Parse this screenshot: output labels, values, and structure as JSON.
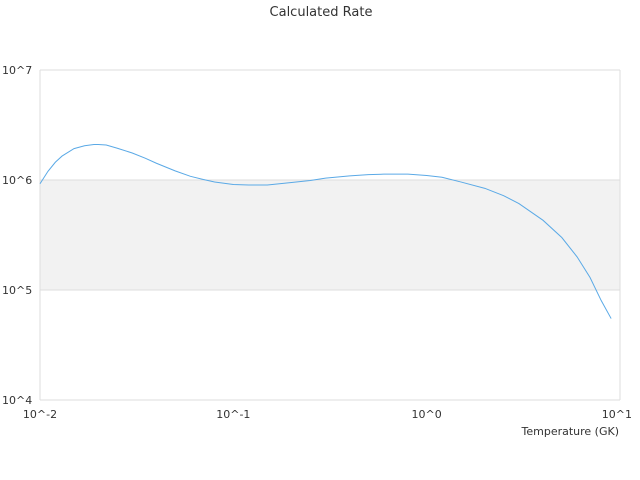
{
  "chart_data": {
    "type": "line",
    "title": "Calculated Rate",
    "xlabel": "Temperature (GK)",
    "ylabel": "",
    "xscale": "log",
    "yscale": "log",
    "xlim": [
      0.01,
      10
    ],
    "ylim": [
      10000,
      10000000
    ],
    "x_tick_labels": [
      "10^-2",
      "10^-1",
      "10^0",
      "10^1"
    ],
    "y_tick_labels": [
      "10^4",
      "10^5",
      "10^6",
      "10^7"
    ],
    "band_fill": "#f2f2f2",
    "plot_background": "#ffffff",
    "grid_color": "#dddddd",
    "series": [
      {
        "color": "#5aa9e6",
        "x": [
          0.01,
          0.011,
          0.012,
          0.013,
          0.015,
          0.017,
          0.019,
          0.02,
          0.022,
          0.025,
          0.03,
          0.035,
          0.04,
          0.05,
          0.06,
          0.07,
          0.08,
          0.1,
          0.12,
          0.15,
          0.2,
          0.25,
          0.3,
          0.4,
          0.5,
          0.6,
          0.7,
          0.8,
          1.0,
          1.2,
          1.5,
          2.0,
          2.5,
          3.0,
          4.0,
          5.0,
          6.0,
          7.0,
          8.0,
          9.0
        ],
        "y": [
          925000,
          1200000,
          1450000,
          1650000,
          1930000,
          2050000,
          2100000,
          2100000,
          2080000,
          1950000,
          1760000,
          1580000,
          1420000,
          1210000,
          1080000,
          1010000,
          960000,
          910000,
          900000,
          900000,
          950000,
          990000,
          1040000,
          1090000,
          1120000,
          1130000,
          1130000,
          1130000,
          1100000,
          1060000,
          960000,
          840000,
          720000,
          610000,
          430000,
          300000,
          200000,
          130000,
          80000,
          55000
        ]
      }
    ]
  }
}
